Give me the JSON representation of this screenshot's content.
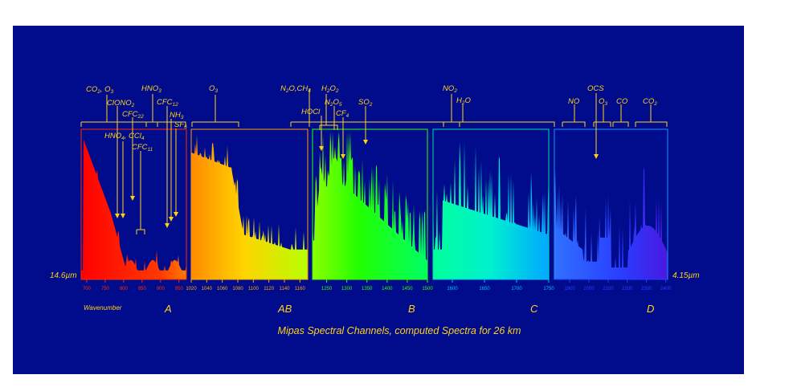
{
  "chart_data": {
    "type": "area",
    "title": "Mipas Spectral Channels, computed Spectra for 26 km",
    "xlabel": "Wavenumber",
    "left_wavelength": "14.6µm",
    "right_wavelength": "4.15µm",
    "colors": {
      "background": "#000c8c",
      "labels": "#ffd21a",
      "arrows": "#ffd21a"
    },
    "bands": [
      {
        "name": "A",
        "xlim": [
          685,
          970
        ],
        "ticks": [
          "700",
          "750",
          "800",
          "850",
          "900",
          "950"
        ],
        "color": "#ff2a00",
        "series": "A"
      },
      {
        "name": "AB",
        "xlim": [
          1020,
          1170
        ],
        "ticks": [
          "1020",
          "1040",
          "1060",
          "1080",
          "1100",
          "1120",
          "1140",
          "1160"
        ],
        "color": "#ffaa00",
        "series": "AB"
      },
      {
        "name": "B",
        "xlim": [
          1215,
          1500
        ],
        "ticks": [
          "1250",
          "1300",
          "1350",
          "1400",
          "1450",
          "1500"
        ],
        "color": "#30ff00",
        "series": "B"
      },
      {
        "name": "C",
        "xlim": [
          1570,
          1750
        ],
        "ticks": [
          "1600",
          "1650",
          "1700",
          "1750"
        ],
        "color": "#00c0ff",
        "series": "C"
      },
      {
        "name": "D",
        "xlim": [
          1820,
          2410
        ],
        "ticks": [
          "1900",
          "2000",
          "2100",
          "2200",
          "2300",
          "2400"
        ],
        "color": "#2040ff",
        "series": "D"
      }
    ],
    "species": [
      "CO2, O3",
      "ClONO2",
      "CFC22",
      "HNO4, CCl4",
      "CFC11",
      "HNO3",
      "CFC12",
      "NH3",
      "SF6",
      "O3",
      "N2O,CH4",
      "HOCl",
      "H2O2",
      "N2O5",
      "CF4",
      "SO2",
      "NO2",
      "H2O",
      "NO",
      "OCS",
      "O3",
      "CO",
      "CO2"
    ]
  }
}
